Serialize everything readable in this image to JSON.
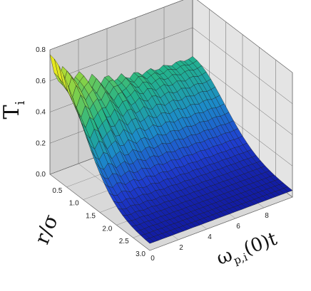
{
  "chart_data": {
    "type": "surface",
    "zlabel": "T",
    "zlabel_sub": "i",
    "ylabel": "r/σ",
    "xlabel": "ω",
    "xlabel_sub": "p,i",
    "xlabel_tail": "(0)t",
    "x_ticks": [
      "0",
      "2",
      "4",
      "6",
      "8"
    ],
    "y_ticks": [
      "0.5",
      "1.0",
      "1.5",
      "2.0",
      "2.5",
      "3.0"
    ],
    "z_ticks": [
      "0.0",
      "0.2",
      "0.4",
      "0.6",
      "0.8"
    ],
    "xlim": [
      0,
      10
    ],
    "ylim": [
      0,
      3
    ],
    "zlim": [
      0,
      0.8
    ],
    "grid": true,
    "colormap": [
      "#0c0c8f",
      "#1f3fd0",
      "#1c8bc8",
      "#23b38a",
      "#7fd04a",
      "#e6e81f"
    ],
    "surface_model": {
      "amplitude_at_r0": 0.65,
      "radial_decay_sigma": 0.95,
      "tail_value": 0.04,
      "oscillation_period": 1.0,
      "oscillation_amplitude": 0.08,
      "oscillation_damping": 0.25
    }
  }
}
